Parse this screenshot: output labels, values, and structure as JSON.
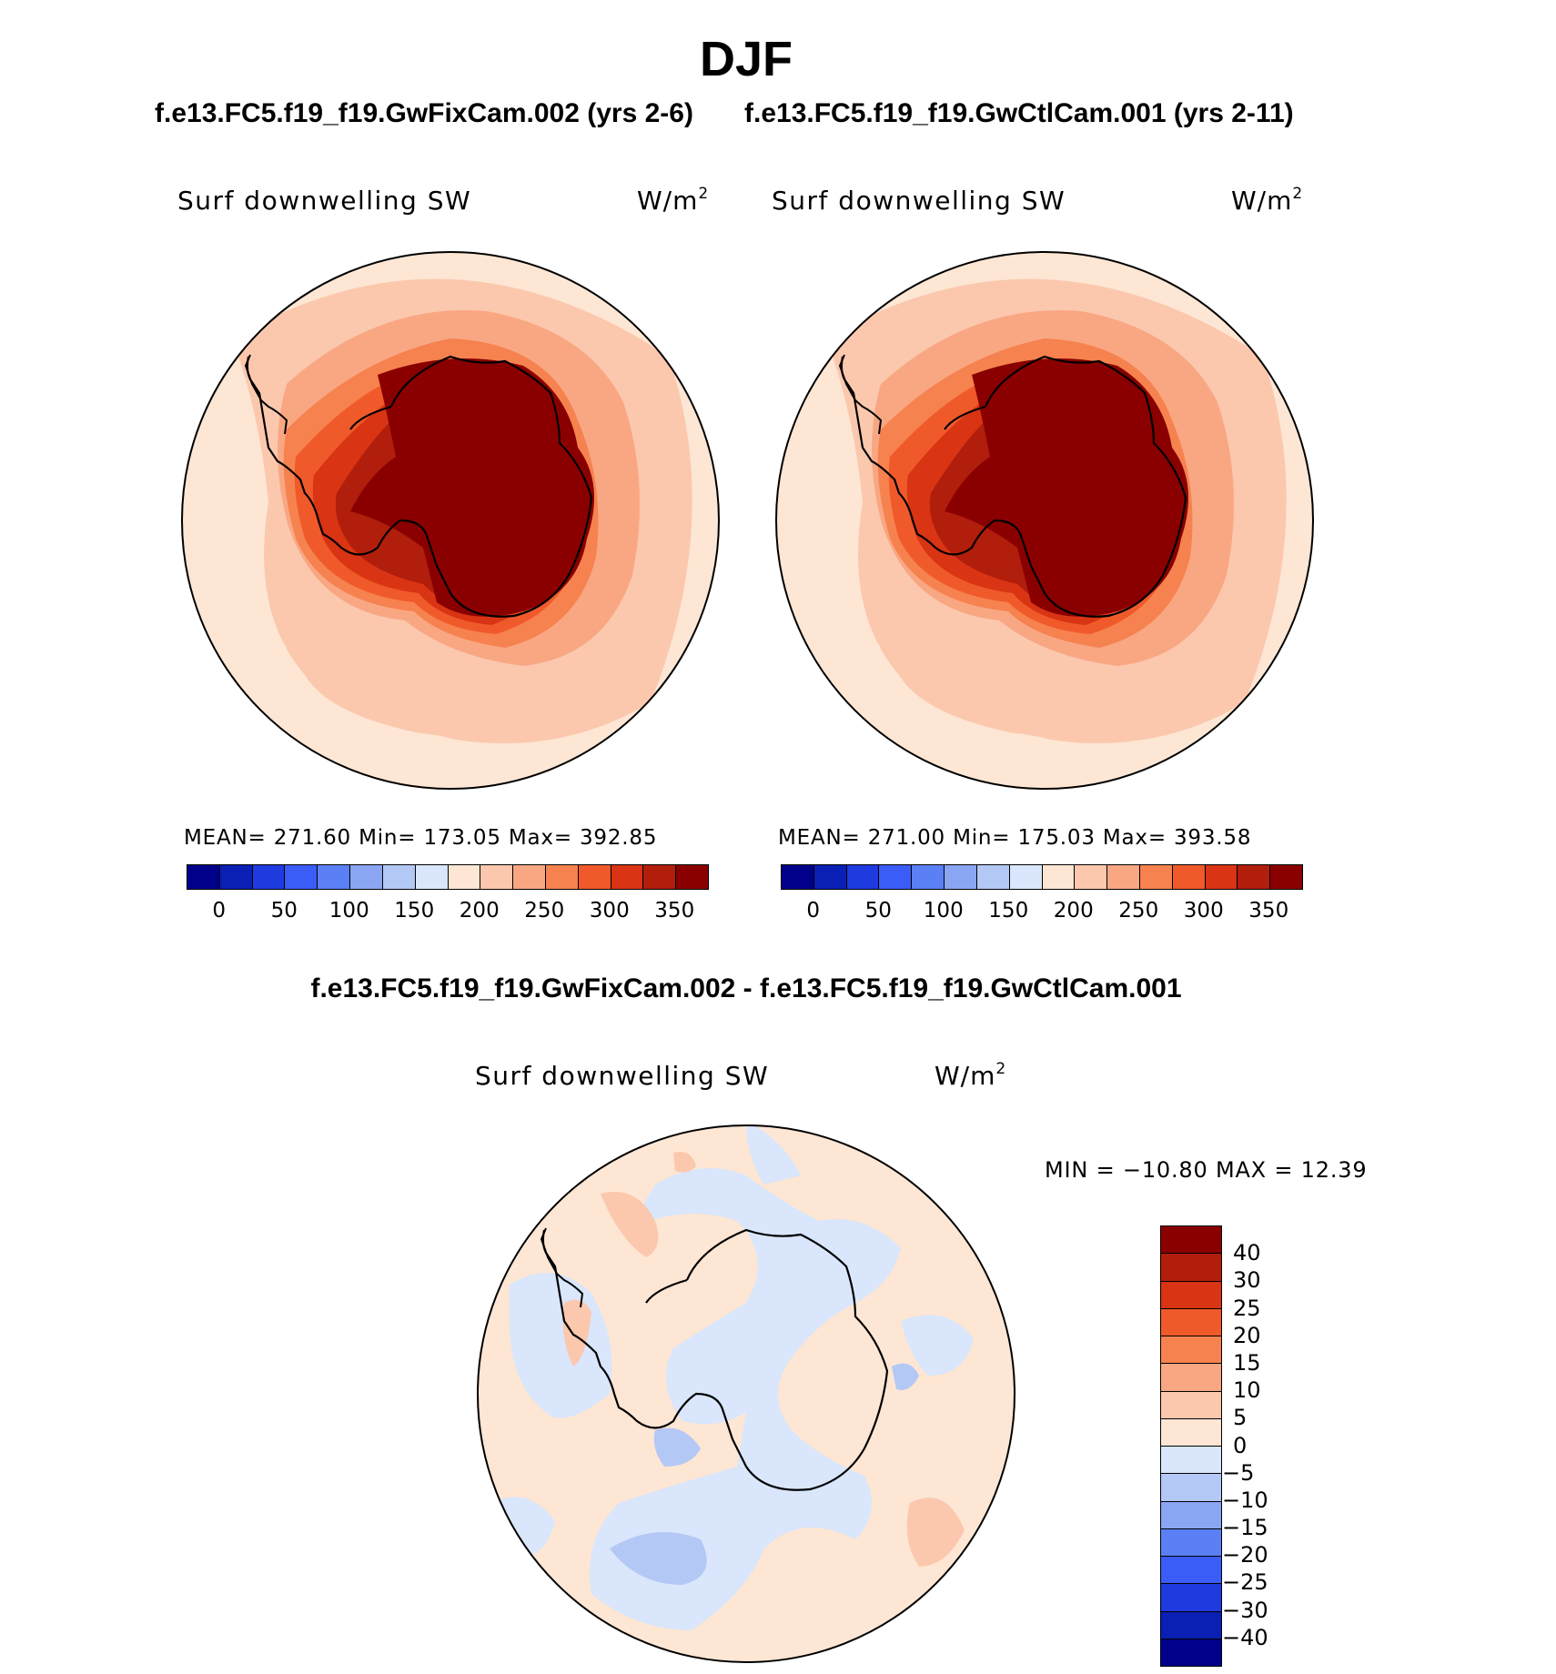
{
  "title": "DJF",
  "panels_subtitle": {
    "left": "f.e13.FC5.f19_f19.GwFixCam.002 (yrs 2-6)",
    "right": "f.e13.FC5.f19_f19.GwCtlCam.001 (yrs 2-11)"
  },
  "panels": [
    {
      "variable": "Surf  downwelling  SW",
      "units": "W/m",
      "units_sup": "2",
      "stats": "MEAN=  271.60    Min=  173.05    Max=  392.85",
      "colorbar_ticks": [
        "0",
        "50",
        "100",
        "150",
        "200",
        "250",
        "300",
        "350"
      ]
    },
    {
      "variable": "Surf  downwelling  SW",
      "units": "W/m",
      "units_sup": "2",
      "stats": "MEAN=  271.00    Min=  175.03    Max=  393.58",
      "colorbar_ticks": [
        "0",
        "50",
        "100",
        "150",
        "200",
        "250",
        "300",
        "350"
      ]
    }
  ],
  "difference": {
    "title": "f.e13.FC5.f19_f19.GwFixCam.002 - f.e13.FC5.f19_f19.GwCtlCam.001",
    "variable": "Surf  downwelling  SW",
    "units": "W/m",
    "units_sup": "2",
    "stats": "MIN  =  −10.80  MAX  =     12.39",
    "colorbar_ticks": [
      "40",
      "30",
      "25",
      "20",
      "15",
      "10",
      "5",
      "0",
      "−5",
      "−10",
      "−15",
      "−20",
      "−25",
      "−30",
      "−40"
    ]
  },
  "colors": {
    "abs_scale": [
      "#00008b",
      "#0a1fb4",
      "#1e3be0",
      "#3a5cf7",
      "#5b80f5",
      "#8aa6f3",
      "#b4c8f6",
      "#d9e6fb",
      "#fde6d4",
      "#fbc8ae",
      "#f9a783",
      "#f6824f",
      "#f05a2a",
      "#d93414",
      "#b11e0c",
      "#8a0000"
    ],
    "diff_scale": [
      "#8a0000",
      "#b11e0c",
      "#d93414",
      "#f05a2a",
      "#f6824f",
      "#f9a783",
      "#fbc8ae",
      "#fde6d4",
      "#d9e6fb",
      "#b4c8f6",
      "#8aa6f3",
      "#5b80f5",
      "#3a5cf7",
      "#1e3be0",
      "#0a1fb4",
      "#00008b"
    ]
  }
}
